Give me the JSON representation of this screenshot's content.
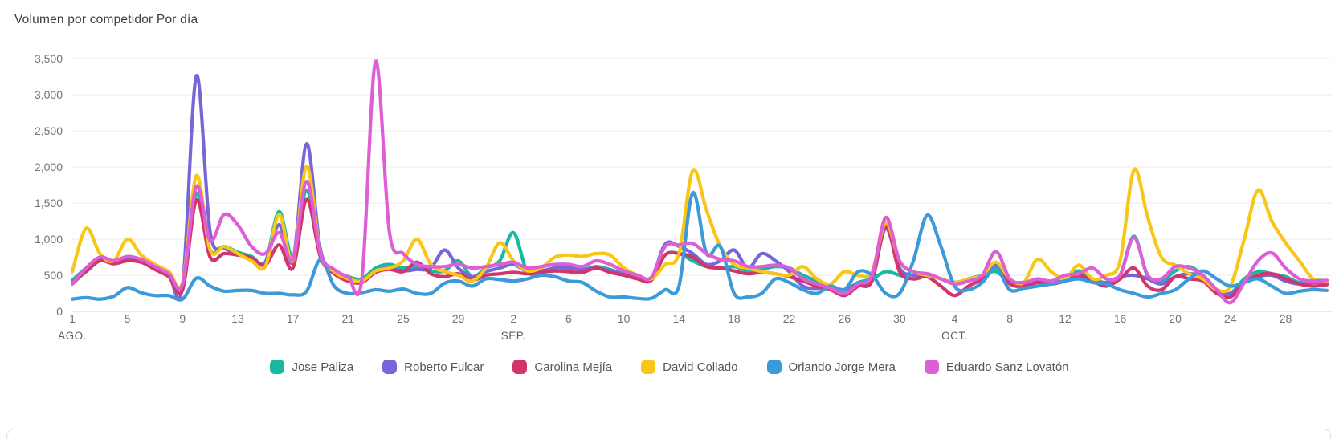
{
  "title": "Volumen por competidor Por día",
  "colors": {
    "jose_paliza": "#17b9a1",
    "roberto_fulcar": "#7667d6",
    "carolina_mejia": "#d1356b",
    "david_collado": "#f9c616",
    "orlando_jorge_mera": "#3d9ad8",
    "eduardo_sanz_lovaton": "#de5ed6"
  },
  "chart_data": {
    "type": "line",
    "title": "Volumen por competidor Por día",
    "xlabel": "",
    "ylabel": "",
    "ylim": [
      0,
      3500
    ],
    "y_tick_step": 500,
    "y_tick_labels": [
      "0",
      "500",
      "1,000",
      "1,500",
      "2,000",
      "2,500",
      "3,000",
      "3,500"
    ],
    "grid": "horizontal",
    "legend_position": "bottom-center",
    "x_start": "1 AGO.",
    "x_end": "31 OCT.",
    "n_points": 92,
    "x_ticks": [
      {
        "index": 0,
        "label": "1",
        "month": "AGO."
      },
      {
        "index": 4,
        "label": "5"
      },
      {
        "index": 8,
        "label": "9"
      },
      {
        "index": 12,
        "label": "13"
      },
      {
        "index": 16,
        "label": "17"
      },
      {
        "index": 20,
        "label": "21"
      },
      {
        "index": 24,
        "label": "25"
      },
      {
        "index": 28,
        "label": "29"
      },
      {
        "index": 32,
        "label": "2",
        "month": "SEP."
      },
      {
        "index": 36,
        "label": "6"
      },
      {
        "index": 40,
        "label": "10"
      },
      {
        "index": 44,
        "label": "14"
      },
      {
        "index": 48,
        "label": "18"
      },
      {
        "index": 52,
        "label": "22"
      },
      {
        "index": 56,
        "label": "26"
      },
      {
        "index": 60,
        "label": "30"
      },
      {
        "index": 64,
        "label": "4",
        "month": "OCT."
      },
      {
        "index": 68,
        "label": "8"
      },
      {
        "index": 72,
        "label": "12"
      },
      {
        "index": 76,
        "label": "16"
      },
      {
        "index": 80,
        "label": "20"
      },
      {
        "index": 84,
        "label": "24"
      },
      {
        "index": 88,
        "label": "28"
      }
    ],
    "series": [
      {
        "name": "Jose Paliza",
        "color_key": "jose_paliza",
        "values": [
          430,
          600,
          720,
          680,
          740,
          700,
          620,
          520,
          380,
          1630,
          850,
          900,
          820,
          760,
          680,
          1380,
          750,
          1680,
          800,
          560,
          480,
          450,
          600,
          650,
          600,
          620,
          560,
          560,
          700,
          480,
          600,
          700,
          1090,
          550,
          560,
          600,
          620,
          580,
          620,
          580,
          520,
          480,
          450,
          780,
          800,
          700,
          620,
          600,
          620,
          560,
          580,
          620,
          600,
          500,
          420,
          350,
          300,
          400,
          450,
          550,
          500,
          450,
          500,
          450,
          400,
          450,
          500,
          550,
          400,
          380,
          420,
          400,
          450,
          560,
          450,
          400,
          500,
          1040,
          480,
          420,
          560,
          620,
          500,
          300,
          250,
          450,
          550,
          520,
          480,
          400,
          430,
          420
        ]
      },
      {
        "name": "Roberto Fulcar",
        "color_key": "roberto_fulcar",
        "values": [
          400,
          550,
          700,
          680,
          720,
          700,
          600,
          500,
          360,
          3260,
          1100,
          880,
          800,
          730,
          680,
          1200,
          700,
          2320,
          850,
          560,
          450,
          420,
          560,
          600,
          560,
          580,
          600,
          850,
          600,
          480,
          550,
          600,
          650,
          550,
          560,
          600,
          600,
          580,
          600,
          560,
          520,
          480,
          460,
          930,
          900,
          800,
          650,
          700,
          850,
          600,
          800,
          700,
          550,
          350,
          320,
          330,
          300,
          380,
          450,
          1150,
          600,
          500,
          520,
          450,
          400,
          430,
          480,
          640,
          420,
          380,
          430,
          400,
          440,
          480,
          440,
          400,
          480,
          500,
          450,
          380,
          480,
          520,
          480,
          280,
          250,
          400,
          480,
          500,
          420,
          380,
          400,
          390
        ]
      },
      {
        "name": "Carolina Mejía",
        "color_key": "carolina_mejia",
        "values": [
          380,
          560,
          700,
          660,
          700,
          680,
          580,
          480,
          300,
          1540,
          750,
          800,
          780,
          740,
          640,
          920,
          600,
          1550,
          750,
          520,
          420,
          400,
          540,
          580,
          550,
          680,
          520,
          480,
          520,
          430,
          500,
          520,
          540,
          520,
          540,
          560,
          550,
          540,
          600,
          540,
          500,
          450,
          430,
          780,
          800,
          750,
          620,
          600,
          560,
          520,
          540,
          520,
          480,
          420,
          350,
          300,
          220,
          350,
          420,
          1180,
          550,
          450,
          480,
          350,
          220,
          350,
          450,
          600,
          380,
          350,
          400,
          380,
          420,
          500,
          420,
          350,
          450,
          600,
          350,
          300,
          480,
          450,
          420,
          250,
          200,
          400,
          500,
          520,
          450,
          380,
          350,
          370
        ]
      },
      {
        "name": "David Collado",
        "color_key": "david_collado",
        "values": [
          550,
          1150,
          800,
          700,
          1000,
          780,
          650,
          550,
          400,
          1880,
          850,
          900,
          800,
          700,
          620,
          1340,
          700,
          2010,
          800,
          550,
          450,
          420,
          560,
          600,
          700,
          1000,
          650,
          550,
          500,
          420,
          600,
          950,
          700,
          560,
          600,
          750,
          780,
          760,
          800,
          780,
          600,
          500,
          450,
          650,
          800,
          1950,
          1400,
          900,
          650,
          600,
          550,
          520,
          500,
          620,
          450,
          380,
          550,
          500,
          550,
          1230,
          700,
          550,
          500,
          450,
          400,
          450,
          500,
          680,
          450,
          400,
          720,
          550,
          450,
          640,
          450,
          500,
          700,
          1960,
          1300,
          750,
          640,
          520,
          450,
          300,
          350,
          1000,
          1680,
          1250,
          950,
          700,
          450,
          420
        ]
      },
      {
        "name": "Orlando Jorge Mera",
        "color_key": "orlando_jorge_mera",
        "values": [
          170,
          190,
          170,
          210,
          330,
          260,
          220,
          220,
          170,
          460,
          350,
          280,
          290,
          290,
          250,
          250,
          230,
          280,
          720,
          350,
          250,
          260,
          300,
          280,
          310,
          250,
          250,
          390,
          420,
          350,
          450,
          440,
          420,
          450,
          500,
          480,
          420,
          400,
          280,
          200,
          200,
          180,
          180,
          300,
          350,
          1640,
          800,
          900,
          250,
          200,
          250,
          450,
          400,
          300,
          250,
          350,
          300,
          550,
          500,
          250,
          250,
          700,
          1330,
          900,
          350,
          300,
          400,
          600,
          300,
          320,
          350,
          380,
          420,
          450,
          400,
          380,
          300,
          250,
          200,
          250,
          300,
          450,
          560,
          450,
          350,
          400,
          450,
          350,
          250,
          280,
          300,
          290
        ]
      },
      {
        "name": "Eduardo Sanz Lovatón",
        "color_key": "eduardo_sanz_lovaton",
        "values": [
          380,
          600,
          750,
          700,
          760,
          720,
          620,
          520,
          380,
          1730,
          980,
          1340,
          1200,
          900,
          800,
          1090,
          720,
          1800,
          800,
          580,
          480,
          450,
          3460,
          1100,
          800,
          650,
          620,
          620,
          650,
          600,
          620,
          650,
          680,
          600,
          620,
          650,
          650,
          620,
          700,
          650,
          560,
          500,
          470,
          900,
          920,
          940,
          800,
          720,
          700,
          620,
          620,
          640,
          600,
          450,
          380,
          320,
          250,
          380,
          500,
          1300,
          700,
          550,
          520,
          450,
          380,
          420,
          500,
          830,
          450,
          400,
          450,
          420,
          500,
          520,
          600,
          450,
          500,
          1020,
          500,
          450,
          620,
          600,
          500,
          300,
          120,
          400,
          700,
          810,
          600,
          450,
          420,
          430
        ]
      }
    ]
  }
}
